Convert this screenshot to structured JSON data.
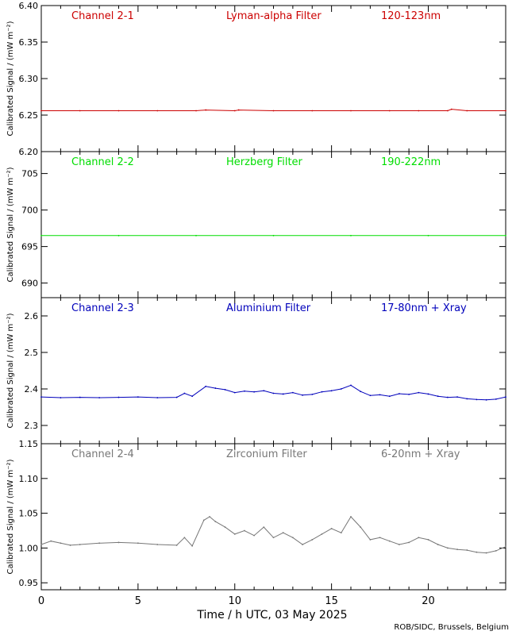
{
  "credit": "ROB/SIDC, Brussels, Belgium",
  "x_axis": {
    "label": "Time / h UTC, 03 May 2025",
    "range": [
      0,
      24
    ],
    "ticks": [
      0,
      5,
      10,
      15,
      20
    ]
  },
  "chart_data": [
    {
      "type": "line",
      "channel": "Channel 2-1",
      "filter": "Lyman-alpha Filter",
      "band": "120-123nm",
      "color": "#cc0000",
      "ylabel": "Calibrated Signal / (mW m⁻²)",
      "ylim": [
        6.2,
        6.4
      ],
      "yticks": [
        "6.20",
        "6.25",
        "6.30",
        "6.35",
        "6.40"
      ],
      "x": [
        0,
        2,
        4,
        6,
        8,
        8.5,
        10,
        10.2,
        12,
        14,
        16,
        18,
        19.5,
        21,
        21.2,
        22,
        24
      ],
      "y": [
        6.256,
        6.256,
        6.256,
        6.256,
        6.256,
        6.257,
        6.256,
        6.257,
        6.256,
        6.256,
        6.256,
        6.256,
        6.256,
        6.256,
        6.258,
        6.256,
        6.256
      ]
    },
    {
      "type": "line",
      "channel": "Channel 2-2",
      "filter": "Herzberg Filter",
      "band": "190-222nm",
      "color": "#00dd00",
      "ylabel": "Calibrated Signal / (mW m⁻²)",
      "ylim": [
        688,
        708
      ],
      "yticks": [
        "690",
        "695",
        "700",
        "705"
      ],
      "x": [
        0,
        4,
        8,
        12,
        16,
        20,
        24
      ],
      "y": [
        696.5,
        696.5,
        696.5,
        696.5,
        696.5,
        696.5,
        696.5
      ]
    },
    {
      "type": "line",
      "channel": "Channel 2-3",
      "filter": "Aluminium Filter",
      "band": "17-80nm + Xray",
      "color": "#0000bb",
      "ylabel": "Calibrated Signal / (mW m⁻²)",
      "ylim": [
        2.25,
        2.65
      ],
      "yticks": [
        "2.3",
        "2.4",
        "2.5",
        "2.6"
      ],
      "x": [
        0,
        1,
        2,
        3,
        4,
        5,
        6,
        7,
        7.4,
        7.8,
        8.5,
        9,
        9.5,
        10,
        10.5,
        11,
        11.5,
        12,
        12.5,
        13,
        13.5,
        14,
        14.5,
        15,
        15.5,
        16,
        16.5,
        17,
        17.5,
        18,
        18.5,
        19,
        19.5,
        20,
        20.5,
        21,
        21.5,
        22,
        22.5,
        23,
        23.5,
        24
      ],
      "y": [
        2.378,
        2.376,
        2.377,
        2.376,
        2.377,
        2.378,
        2.376,
        2.377,
        2.388,
        2.38,
        2.407,
        2.402,
        2.398,
        2.39,
        2.394,
        2.392,
        2.395,
        2.388,
        2.386,
        2.39,
        2.383,
        2.385,
        2.392,
        2.395,
        2.4,
        2.41,
        2.393,
        2.382,
        2.384,
        2.38,
        2.387,
        2.385,
        2.39,
        2.386,
        2.38,
        2.377,
        2.378,
        2.373,
        2.371,
        2.37,
        2.372,
        2.378
      ]
    },
    {
      "type": "line",
      "channel": "Channel 2-4",
      "filter": "Zirconium Filter",
      "band": "6-20nm + Xray",
      "color": "#777777",
      "ylabel": "Calibrated Signal / (mW m⁻²)",
      "ylim": [
        0.94,
        1.15
      ],
      "yticks": [
        "0.95",
        "1.00",
        "1.05",
        "1.10",
        "1.15"
      ],
      "x": [
        0,
        0.5,
        1,
        1.5,
        2,
        3,
        4,
        5,
        6,
        7,
        7.4,
        7.8,
        8.4,
        8.7,
        9,
        9.5,
        10,
        10.5,
        11,
        11.5,
        12,
        12.5,
        13,
        13.5,
        14,
        14.5,
        15,
        15.5,
        16,
        16.5,
        17,
        17.5,
        18,
        18.5,
        19,
        19.5,
        20,
        20.5,
        21,
        21.5,
        22,
        22.5,
        23,
        23.5,
        24
      ],
      "y": [
        1.005,
        1.01,
        1.007,
        1.004,
        1.005,
        1.007,
        1.008,
        1.007,
        1.005,
        1.004,
        1.015,
        1.003,
        1.04,
        1.045,
        1.038,
        1.03,
        1.02,
        1.025,
        1.018,
        1.03,
        1.015,
        1.022,
        1.015,
        1.005,
        1.012,
        1.02,
        1.028,
        1.022,
        1.045,
        1.03,
        1.012,
        1.015,
        1.01,
        1.005,
        1.008,
        1.015,
        1.012,
        1.005,
        1.0,
        0.998,
        0.997,
        0.994,
        0.993,
        0.996,
        1.002
      ]
    }
  ]
}
